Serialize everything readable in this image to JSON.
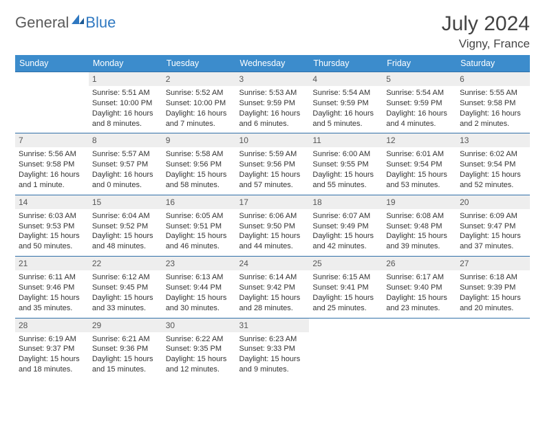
{
  "logo": {
    "general": "General",
    "blue": "Blue"
  },
  "header": {
    "month": "July 2024",
    "location": "Vigny, France"
  },
  "colors": {
    "header_bg": "#3c8ccc",
    "header_text": "#ffffff",
    "daynum_bg": "#eeeeee",
    "border": "#2f6fa8",
    "accent": "#2f78c1"
  },
  "weekdays": [
    "Sunday",
    "Monday",
    "Tuesday",
    "Wednesday",
    "Thursday",
    "Friday",
    "Saturday"
  ],
  "weeks": [
    [
      {
        "num": "",
        "sunrise": "",
        "sunset": "",
        "daylight": ""
      },
      {
        "num": "1",
        "sunrise": "Sunrise: 5:51 AM",
        "sunset": "Sunset: 10:00 PM",
        "daylight": "Daylight: 16 hours and 8 minutes."
      },
      {
        "num": "2",
        "sunrise": "Sunrise: 5:52 AM",
        "sunset": "Sunset: 10:00 PM",
        "daylight": "Daylight: 16 hours and 7 minutes."
      },
      {
        "num": "3",
        "sunrise": "Sunrise: 5:53 AM",
        "sunset": "Sunset: 9:59 PM",
        "daylight": "Daylight: 16 hours and 6 minutes."
      },
      {
        "num": "4",
        "sunrise": "Sunrise: 5:54 AM",
        "sunset": "Sunset: 9:59 PM",
        "daylight": "Daylight: 16 hours and 5 minutes."
      },
      {
        "num": "5",
        "sunrise": "Sunrise: 5:54 AM",
        "sunset": "Sunset: 9:59 PM",
        "daylight": "Daylight: 16 hours and 4 minutes."
      },
      {
        "num": "6",
        "sunrise": "Sunrise: 5:55 AM",
        "sunset": "Sunset: 9:58 PM",
        "daylight": "Daylight: 16 hours and 2 minutes."
      }
    ],
    [
      {
        "num": "7",
        "sunrise": "Sunrise: 5:56 AM",
        "sunset": "Sunset: 9:58 PM",
        "daylight": "Daylight: 16 hours and 1 minute."
      },
      {
        "num": "8",
        "sunrise": "Sunrise: 5:57 AM",
        "sunset": "Sunset: 9:57 PM",
        "daylight": "Daylight: 16 hours and 0 minutes."
      },
      {
        "num": "9",
        "sunrise": "Sunrise: 5:58 AM",
        "sunset": "Sunset: 9:56 PM",
        "daylight": "Daylight: 15 hours and 58 minutes."
      },
      {
        "num": "10",
        "sunrise": "Sunrise: 5:59 AM",
        "sunset": "Sunset: 9:56 PM",
        "daylight": "Daylight: 15 hours and 57 minutes."
      },
      {
        "num": "11",
        "sunrise": "Sunrise: 6:00 AM",
        "sunset": "Sunset: 9:55 PM",
        "daylight": "Daylight: 15 hours and 55 minutes."
      },
      {
        "num": "12",
        "sunrise": "Sunrise: 6:01 AM",
        "sunset": "Sunset: 9:54 PM",
        "daylight": "Daylight: 15 hours and 53 minutes."
      },
      {
        "num": "13",
        "sunrise": "Sunrise: 6:02 AM",
        "sunset": "Sunset: 9:54 PM",
        "daylight": "Daylight: 15 hours and 52 minutes."
      }
    ],
    [
      {
        "num": "14",
        "sunrise": "Sunrise: 6:03 AM",
        "sunset": "Sunset: 9:53 PM",
        "daylight": "Daylight: 15 hours and 50 minutes."
      },
      {
        "num": "15",
        "sunrise": "Sunrise: 6:04 AM",
        "sunset": "Sunset: 9:52 PM",
        "daylight": "Daylight: 15 hours and 48 minutes."
      },
      {
        "num": "16",
        "sunrise": "Sunrise: 6:05 AM",
        "sunset": "Sunset: 9:51 PM",
        "daylight": "Daylight: 15 hours and 46 minutes."
      },
      {
        "num": "17",
        "sunrise": "Sunrise: 6:06 AM",
        "sunset": "Sunset: 9:50 PM",
        "daylight": "Daylight: 15 hours and 44 minutes."
      },
      {
        "num": "18",
        "sunrise": "Sunrise: 6:07 AM",
        "sunset": "Sunset: 9:49 PM",
        "daylight": "Daylight: 15 hours and 42 minutes."
      },
      {
        "num": "19",
        "sunrise": "Sunrise: 6:08 AM",
        "sunset": "Sunset: 9:48 PM",
        "daylight": "Daylight: 15 hours and 39 minutes."
      },
      {
        "num": "20",
        "sunrise": "Sunrise: 6:09 AM",
        "sunset": "Sunset: 9:47 PM",
        "daylight": "Daylight: 15 hours and 37 minutes."
      }
    ],
    [
      {
        "num": "21",
        "sunrise": "Sunrise: 6:11 AM",
        "sunset": "Sunset: 9:46 PM",
        "daylight": "Daylight: 15 hours and 35 minutes."
      },
      {
        "num": "22",
        "sunrise": "Sunrise: 6:12 AM",
        "sunset": "Sunset: 9:45 PM",
        "daylight": "Daylight: 15 hours and 33 minutes."
      },
      {
        "num": "23",
        "sunrise": "Sunrise: 6:13 AM",
        "sunset": "Sunset: 9:44 PM",
        "daylight": "Daylight: 15 hours and 30 minutes."
      },
      {
        "num": "24",
        "sunrise": "Sunrise: 6:14 AM",
        "sunset": "Sunset: 9:42 PM",
        "daylight": "Daylight: 15 hours and 28 minutes."
      },
      {
        "num": "25",
        "sunrise": "Sunrise: 6:15 AM",
        "sunset": "Sunset: 9:41 PM",
        "daylight": "Daylight: 15 hours and 25 minutes."
      },
      {
        "num": "26",
        "sunrise": "Sunrise: 6:17 AM",
        "sunset": "Sunset: 9:40 PM",
        "daylight": "Daylight: 15 hours and 23 minutes."
      },
      {
        "num": "27",
        "sunrise": "Sunrise: 6:18 AM",
        "sunset": "Sunset: 9:39 PM",
        "daylight": "Daylight: 15 hours and 20 minutes."
      }
    ],
    [
      {
        "num": "28",
        "sunrise": "Sunrise: 6:19 AM",
        "sunset": "Sunset: 9:37 PM",
        "daylight": "Daylight: 15 hours and 18 minutes."
      },
      {
        "num": "29",
        "sunrise": "Sunrise: 6:21 AM",
        "sunset": "Sunset: 9:36 PM",
        "daylight": "Daylight: 15 hours and 15 minutes."
      },
      {
        "num": "30",
        "sunrise": "Sunrise: 6:22 AM",
        "sunset": "Sunset: 9:35 PM",
        "daylight": "Daylight: 15 hours and 12 minutes."
      },
      {
        "num": "31",
        "sunrise": "Sunrise: 6:23 AM",
        "sunset": "Sunset: 9:33 PM",
        "daylight": "Daylight: 15 hours and 9 minutes."
      },
      {
        "num": "",
        "sunrise": "",
        "sunset": "",
        "daylight": ""
      },
      {
        "num": "",
        "sunrise": "",
        "sunset": "",
        "daylight": ""
      },
      {
        "num": "",
        "sunrise": "",
        "sunset": "",
        "daylight": ""
      }
    ]
  ]
}
